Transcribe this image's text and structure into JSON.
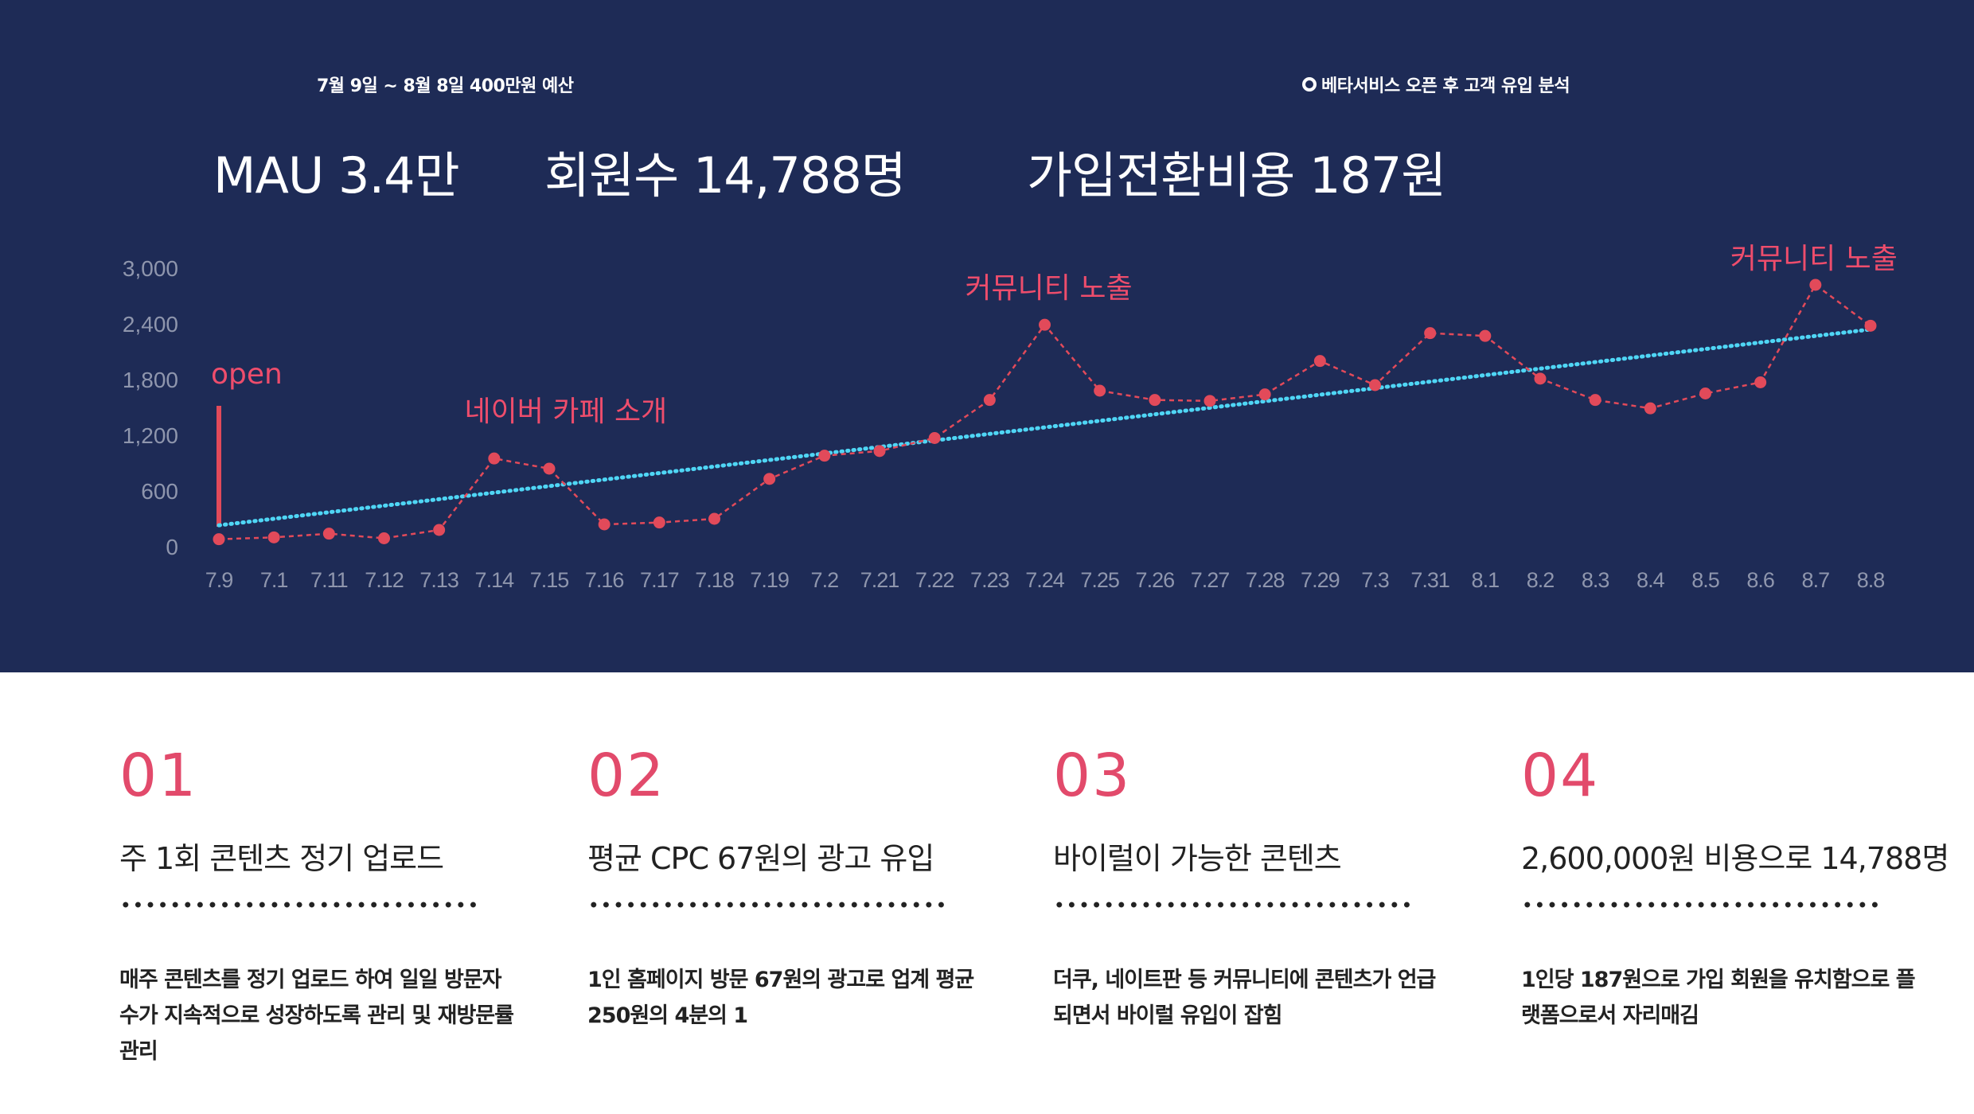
{
  "header": {
    "period": "7월 9일 ~ 8월 8일 400만원 예산",
    "analysis_title": "베타서비스 오픈 후 고객 유입 분석"
  },
  "kpis": {
    "mau": "MAU 3.4만",
    "members": "회원수 14,788명",
    "signup_cost": "가입전환비용 187원"
  },
  "chart_data": {
    "type": "line",
    "categories": [
      "7.9",
      "7.1",
      "7.11",
      "7.12",
      "7.13",
      "7.14",
      "7.15",
      "7.16",
      "7.17",
      "7.18",
      "7.19",
      "7.2",
      "7.21",
      "7.22",
      "7.23",
      "7.24",
      "7.25",
      "7.26",
      "7.27",
      "7.28",
      "7.29",
      "7.3",
      "7.31",
      "8.1",
      "8.2",
      "8.3",
      "8.4",
      "8.5",
      "8.6",
      "8.7",
      "8.8"
    ],
    "series": [
      {
        "values": [
          80,
          100,
          140,
          90,
          180,
          950,
          840,
          240,
          260,
          300,
          730,
          980,
          1030,
          1170,
          1580,
          2390,
          1680,
          1580,
          1570,
          1640,
          2000,
          1740,
          2300,
          2270,
          1810,
          1580,
          1490,
          1650,
          1770,
          2820,
          2380
        ]
      }
    ],
    "trendline": {
      "start": 230,
      "end": 2340
    },
    "ylim": [
      0,
      3000
    ],
    "yticks": [
      "3,000",
      "2,400",
      "1,800",
      "1,200",
      "600",
      "0"
    ],
    "annotations": [
      {
        "label": "open",
        "category": "7.9"
      },
      {
        "label": "네이버 카페 소개",
        "category": "7.14"
      },
      {
        "label": "커뮤니티 노출",
        "category": "7.24"
      },
      {
        "label": "커뮤니티 노출",
        "category": "8.7"
      }
    ],
    "colors": {
      "line": "#e24a5a",
      "trend": "#4fd6f5",
      "annotation": "#ee4d6c",
      "tick": "#8f96ad",
      "background": "#1e2b56"
    },
    "grid": false,
    "legend": "none"
  },
  "cards": [
    {
      "num": "01",
      "title": "주 1회 콘텐츠 정기 업로드",
      "desc": "매주 콘텐츠를 정기 업로드 하여 일일 방문자수가 지속적으로 성장하도록 관리 및 재방문률 관리"
    },
    {
      "num": "02",
      "title": "평균  CPC 67원의 광고 유입",
      "desc": "1인 홈페이지 방문 67원의 광고로 업계 평균 250원의 4분의 1"
    },
    {
      "num": "03",
      "title": "바이럴이 가능한 콘텐츠",
      "desc": "더쿠, 네이트판 등 커뮤니티에 콘텐츠가 언급되면서 바이럴 유입이 잡힘"
    },
    {
      "num": "04",
      "title": "2,600,000원 비용으로 14,788명",
      "desc": "1인당 187원으로 가입 회원을 유치함으로 플랫폼으로서 자리매김"
    }
  ]
}
